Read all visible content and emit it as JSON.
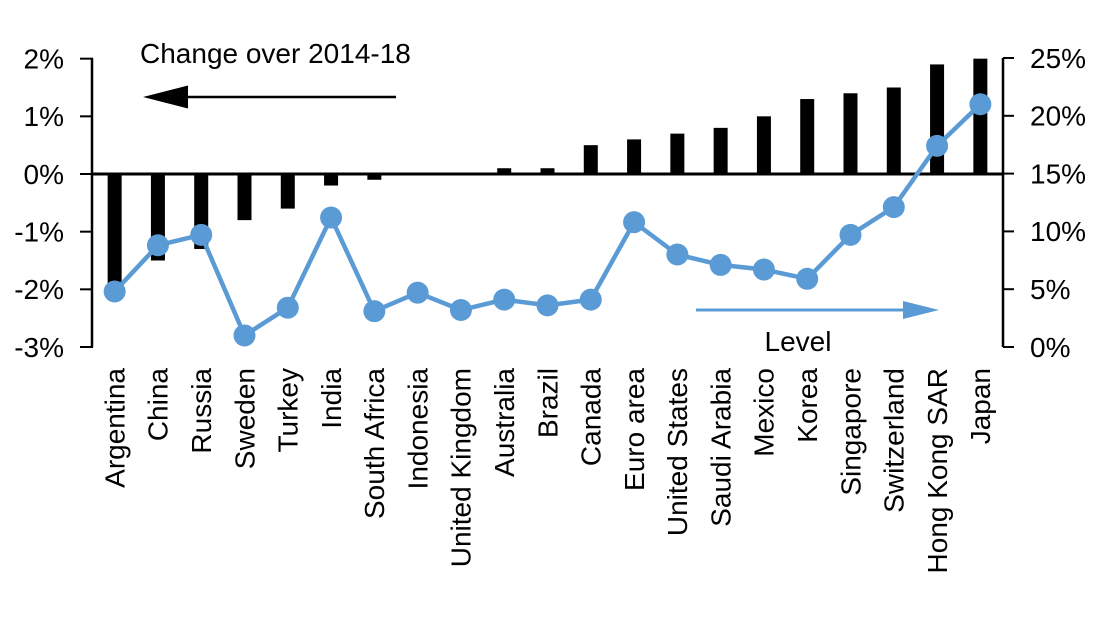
{
  "chart_data": {
    "type": "combo",
    "categories": [
      "Argentina",
      "China",
      "Russia",
      "Sweden",
      "Turkey",
      "India",
      "South Africa",
      "Indonesia",
      "United Kingdom",
      "Australia",
      "Brazil",
      "Canada",
      "Euro area",
      "United States",
      "Saudi Arabia",
      "Mexico",
      "Korea",
      "Singapore",
      "Switzerland",
      "Hong Kong SAR",
      "Japan"
    ],
    "series": [
      {
        "name": "Change over 2014-18",
        "type": "bar",
        "axis": "left",
        "color": "#000000",
        "values": [
          -1.9,
          -1.5,
          -1.3,
          -0.8,
          -0.6,
          -0.2,
          -0.1,
          0,
          0,
          0.1,
          0.1,
          0.5,
          0.6,
          0.7,
          0.8,
          1.0,
          1.3,
          1.4,
          1.5,
          1.9,
          2.0
        ]
      },
      {
        "name": "Level",
        "type": "line",
        "axis": "right",
        "color": "#5B9BD5",
        "values": [
          4.8,
          8.8,
          9.7,
          1.0,
          3.4,
          11.2,
          3.1,
          4.7,
          3.2,
          4.1,
          3.6,
          4.1,
          10.8,
          8.0,
          7.1,
          6.7,
          5.9,
          9.7,
          12.1,
          17.4,
          21.0
        ]
      }
    ],
    "left_axis": {
      "min": -3,
      "max": 2,
      "tick_values": [
        2,
        1,
        0,
        -1,
        -2,
        -3
      ],
      "tick_labels": [
        "2%",
        "1%",
        "0%",
        "-1%",
        "-2%",
        "-3%"
      ]
    },
    "right_axis": {
      "min": 0,
      "max": 25,
      "tick_values": [
        25,
        20,
        15,
        10,
        5,
        0
      ],
      "tick_labels": [
        "25%",
        "20%",
        "15%",
        "10%",
        "5%",
        "0%"
      ]
    },
    "grid": false,
    "legend_position": "annotations-with-arrows",
    "background": "#FFFFFF"
  }
}
